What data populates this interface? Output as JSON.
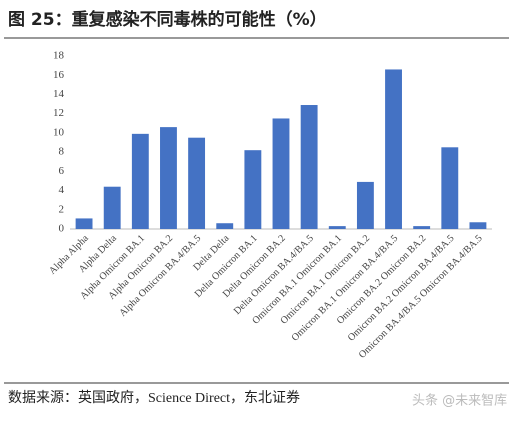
{
  "chart_data": {
    "type": "bar",
    "title": "图 25：重复感染不同毒株的可能性（%）",
    "source": "数据来源：英国政府，Science Direct，东北证券",
    "watermark": "头条 @未来智库",
    "categories": [
      "Alpha Alpha",
      "Alpha Delta",
      "Alpha Omicron BA.1",
      "Alpha Omicron BA.2",
      "Alpha Omicron BA.4/BA.5",
      "Delta Delta",
      "Delta Omicron BA.1",
      "Delta Omicron BA.2",
      "Delta Omicron BA.4/BA.5",
      "Omicron BA.1 Omicron BA.1",
      "Omicron BA.1 Omicron BA.2",
      "Omicron BA.1 Omicron BA.4/BA.5",
      "Omicron BA.2 Omicron BA.2",
      "Omicron BA.2 Omicron BA.4/BA.5",
      "Omicron BA.4/BA.5 Omicron BA.4/BA.5"
    ],
    "values": [
      1.1,
      4.4,
      9.9,
      10.6,
      9.5,
      0.6,
      8.2,
      11.5,
      12.9,
      0.3,
      4.9,
      16.6,
      0.3,
      8.5,
      0.7
    ],
    "color": "#4472c4",
    "ylim": [
      0,
      18
    ],
    "yticks": [
      0,
      2,
      4,
      6,
      8,
      10,
      12,
      14,
      16,
      18
    ],
    "grid": false
  }
}
